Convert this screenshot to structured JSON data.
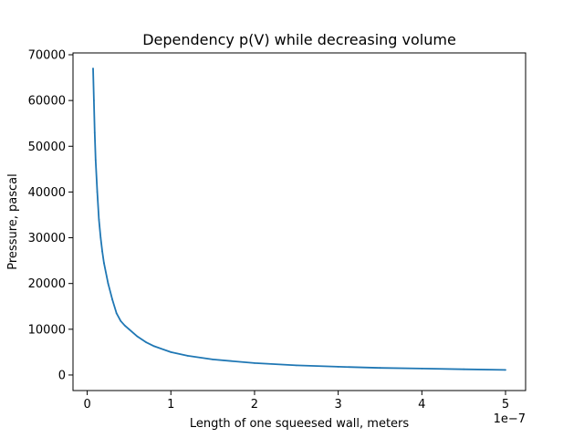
{
  "chart_data": {
    "type": "line",
    "title": "Dependency p(V) while decreasing volume",
    "xlabel": "Length of one squeesed wall, meters",
    "ylabel": "Pressure, pascal",
    "x_offset_label": "1e−7",
    "xlim": [
      -1.7e-08,
      5.24e-07
    ],
    "ylim": [
      -3400,
      70400
    ],
    "xticks": [
      0,
      1e-07,
      2e-07,
      3e-07,
      4e-07,
      5e-07
    ],
    "xtick_labels": [
      "0",
      "1",
      "2",
      "3",
      "4",
      "5"
    ],
    "yticks": [
      0,
      10000,
      20000,
      30000,
      40000,
      50000,
      60000,
      70000
    ],
    "ytick_labels": [
      "0",
      "10000",
      "20000",
      "30000",
      "40000",
      "50000",
      "60000",
      "70000"
    ],
    "grid": false,
    "series": [
      {
        "color": "#1f77b4",
        "x": [
          7e-09,
          8e-09,
          9e-09,
          1e-08,
          1.2e-08,
          1.4e-08,
          1.6e-08,
          1.8e-08,
          2e-08,
          2.5e-08,
          3e-08,
          3.5e-08,
          4e-08,
          4.5e-08,
          5e-08,
          6e-08,
          7e-08,
          8e-08,
          1e-07,
          1.2e-07,
          1.5e-07,
          2e-07,
          2.5e-07,
          3e-07,
          3.5e-07,
          4e-07,
          4.5e-07,
          5e-07
        ],
        "y": [
          67000,
          60000,
          53000,
          47000,
          40000,
          34000,
          30000,
          27000,
          24500,
          20000,
          16500,
          13500,
          11800,
          10800,
          10000,
          8400,
          7200,
          6300,
          5000,
          4200,
          3400,
          2600,
          2100,
          1800,
          1550,
          1400,
          1250,
          1100
        ]
      }
    ]
  }
}
